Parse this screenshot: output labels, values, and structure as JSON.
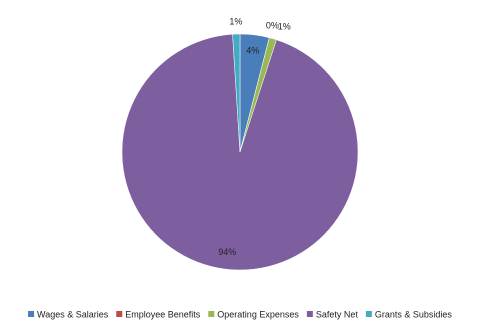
{
  "chart_data": {
    "type": "pie",
    "categories": [
      "Wages & Salaries",
      "Employee Benefits",
      "Operating Expenses",
      "Safety Net",
      "Grants & Subsidies"
    ],
    "values": [
      4,
      0,
      1,
      94,
      1
    ],
    "value_labels": [
      "4%",
      "0%",
      "1%",
      "94%",
      "1%"
    ],
    "colors": [
      "#4a7ebb",
      "#be4b48",
      "#98b954",
      "#7d5fa0",
      "#46aac5"
    ],
    "legend": "bottom"
  }
}
